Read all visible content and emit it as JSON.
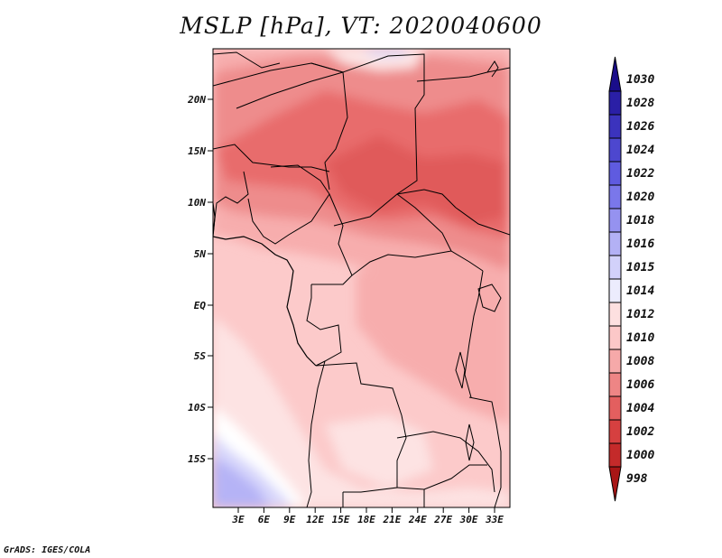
{
  "title": "MSLP [hPa], VT: 2020040600",
  "credit": "GrADS: IGES/COLA",
  "map": {
    "lat_labels": [
      "20N",
      "15N",
      "10N",
      "5N",
      "EQ",
      "5S",
      "10S",
      "15S"
    ],
    "lon_labels": [
      "3E",
      "6E",
      "9E",
      "12E",
      "15E",
      "18E",
      "21E",
      "24E",
      "27E",
      "30E",
      "33E"
    ],
    "border_color": "#000000"
  },
  "colorbar": {
    "levels": [
      "1030",
      "1028",
      "1026",
      "1024",
      "1022",
      "1020",
      "1018",
      "1016",
      "1015",
      "1014",
      "1012",
      "1010",
      "1008",
      "1006",
      "1004",
      "1002",
      "1000",
      "998"
    ],
    "colors": [
      "#1a0d8a",
      "#2a1fa6",
      "#3b33bd",
      "#4d47cf",
      "#5f5be0",
      "#7a77ea",
      "#9592f0",
      "#b3b1f5",
      "#d2d1fa",
      "#ececfd",
      "#fde0e0",
      "#fcc8c8",
      "#f6a9a9",
      "#ee8585",
      "#e35f5f",
      "#d64040",
      "#c42a2a",
      "#a81616"
    ]
  }
}
